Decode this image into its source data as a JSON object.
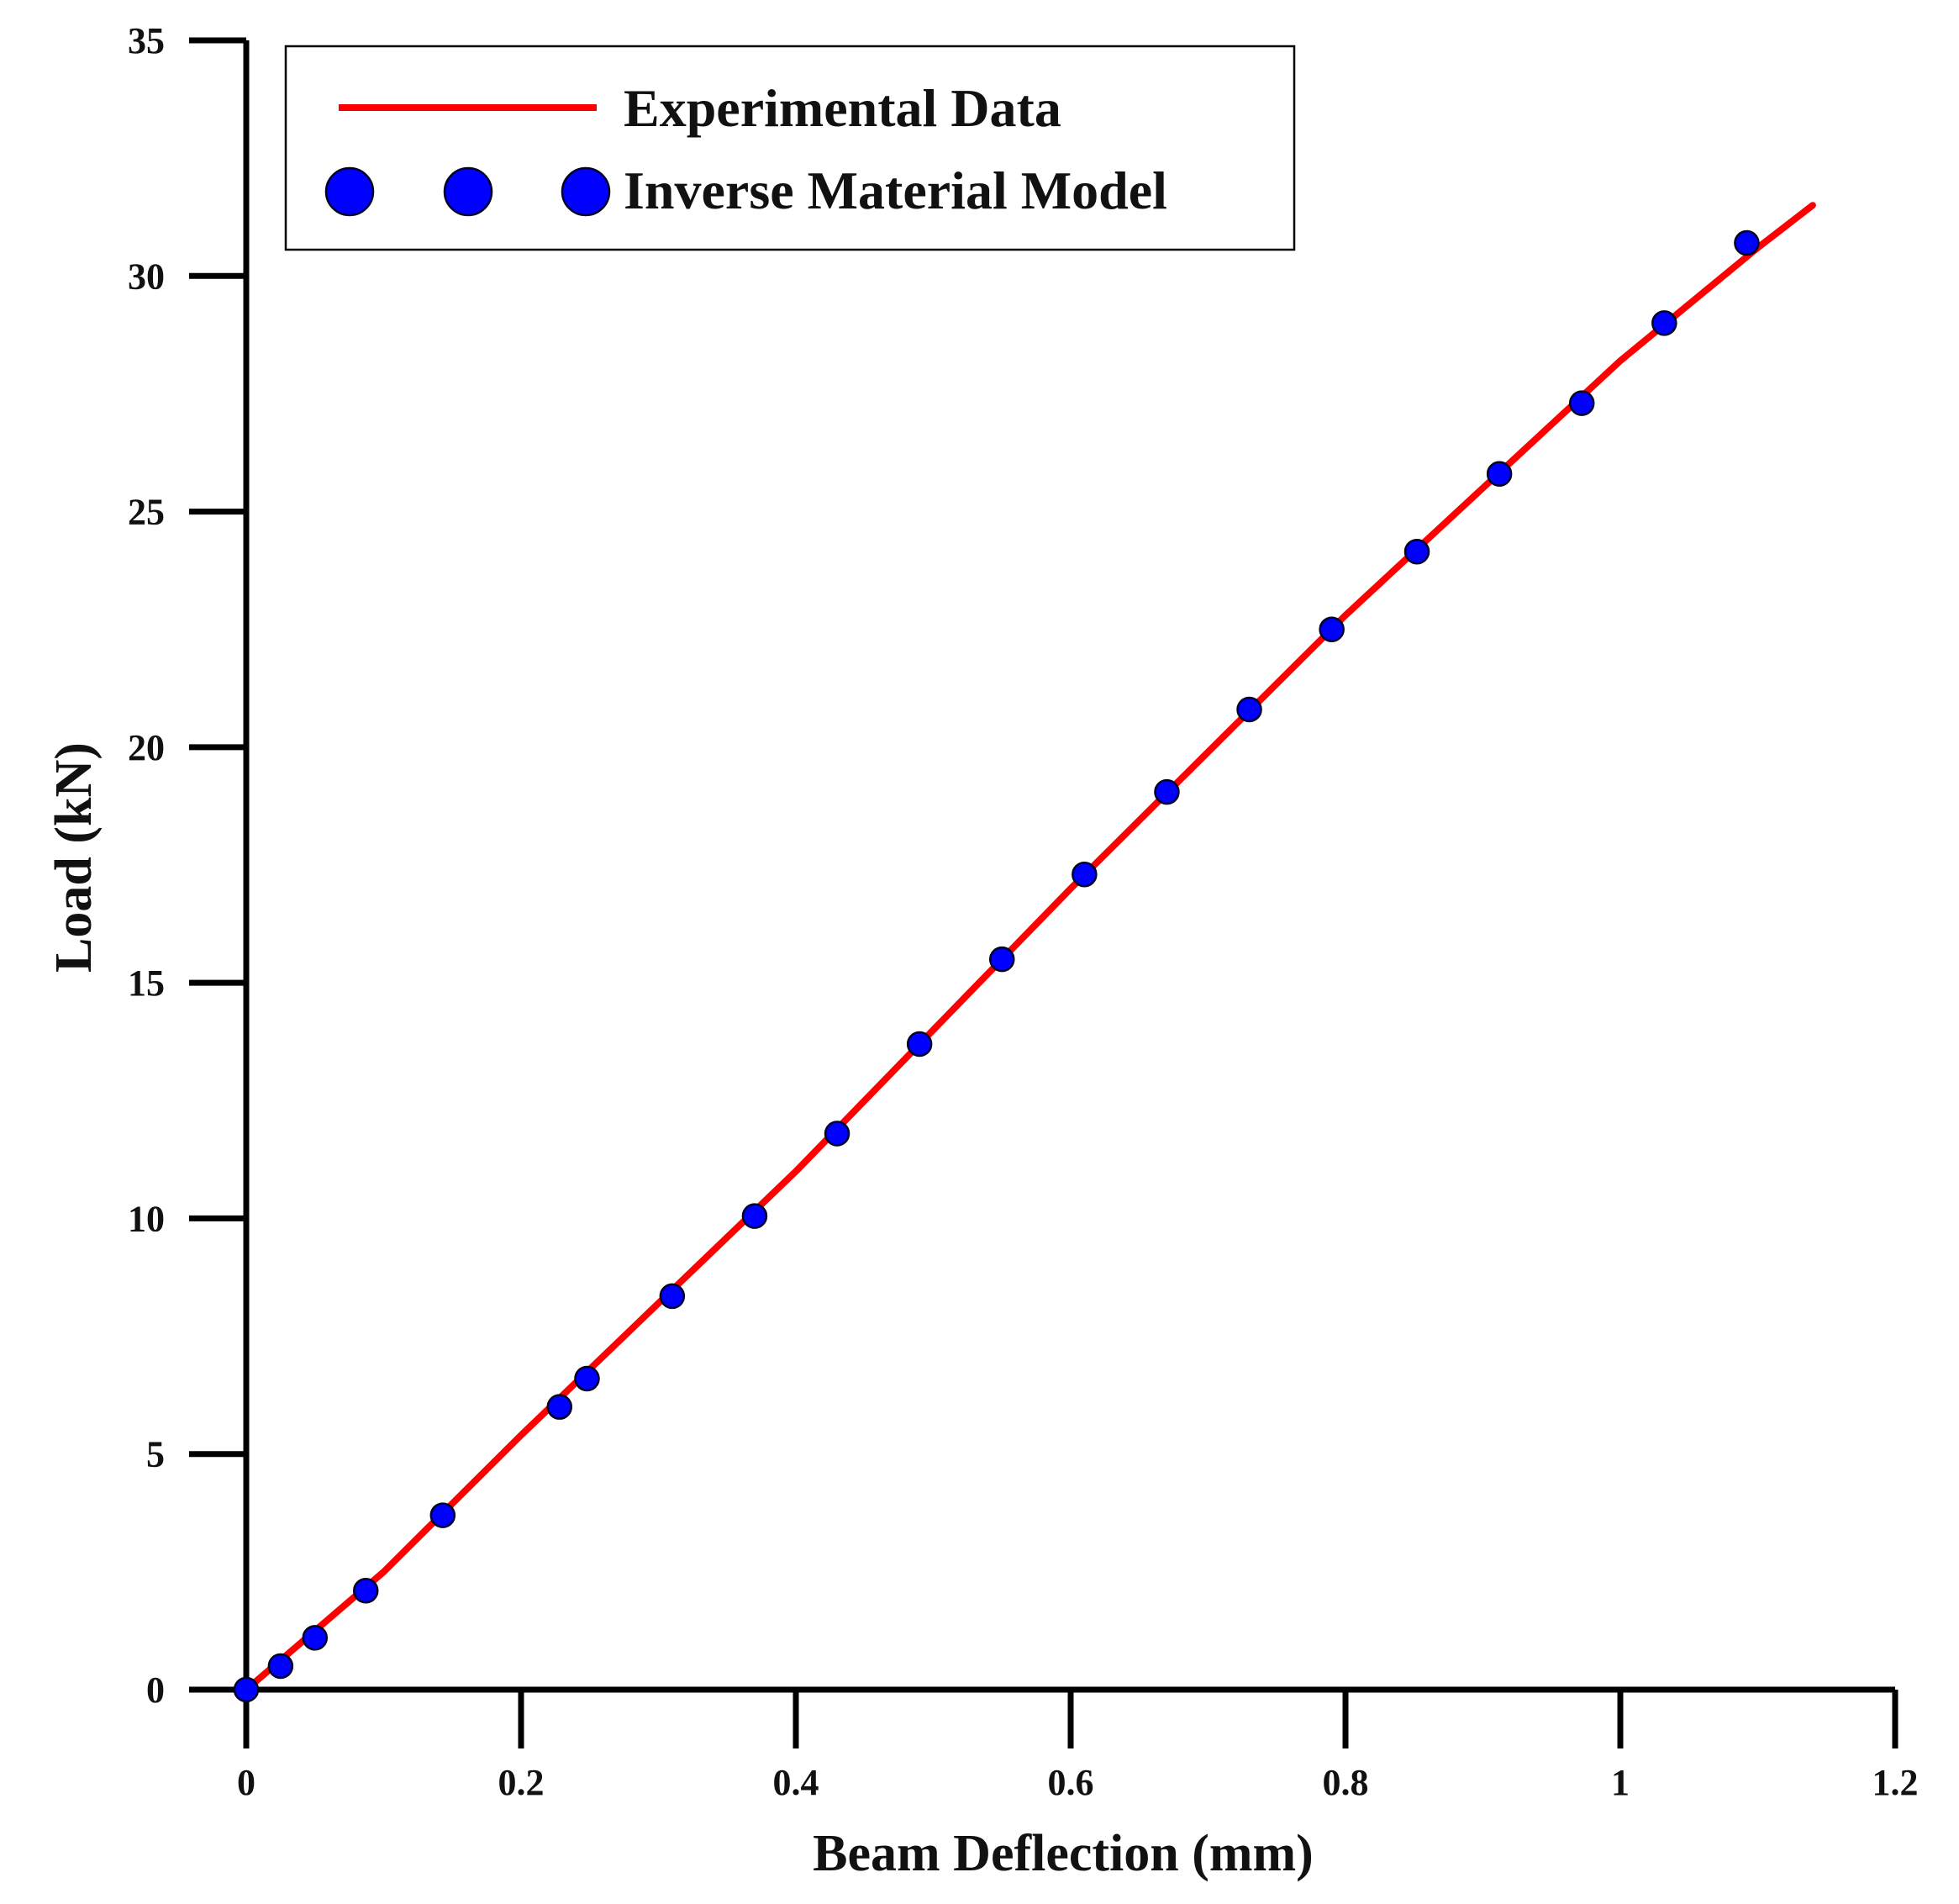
{
  "chart_data": {
    "type": "line",
    "title": "",
    "xlabel": "Beam Deflection (mm)",
    "ylabel": "Load (kN)",
    "xlim": [
      0,
      1.2
    ],
    "ylim": [
      0,
      35
    ],
    "x_ticks": [
      0,
      0.2,
      0.4,
      0.6,
      0.8,
      1,
      1.2
    ],
    "x_tick_labels": [
      "0",
      "0.2",
      "0.4",
      "0.6",
      "0.8",
      "1",
      "1.2"
    ],
    "y_ticks": [
      0,
      5,
      10,
      15,
      20,
      25,
      30,
      35
    ],
    "y_tick_labels": [
      "0",
      "5",
      "10",
      "15",
      "20",
      "25",
      "30",
      "35"
    ],
    "grid": false,
    "legend_position": "top-left",
    "colors": {
      "line": "#ff0000",
      "marker": "#0000ff",
      "marker_edge": "#000022",
      "axis": "#000000"
    },
    "series": [
      {
        "name": "Experimental Data",
        "style": "line",
        "x": [
          0,
          0.1,
          0.2,
          0.3,
          0.4,
          0.5,
          0.6,
          0.7,
          0.8,
          0.9,
          1.0,
          1.1,
          1.14
        ],
        "y": [
          0,
          2.5,
          5.4,
          8.2,
          11.0,
          14.0,
          17.0,
          19.9,
          22.8,
          25.5,
          28.2,
          30.6,
          31.5
        ]
      },
      {
        "name": "Inverse Material Model",
        "style": "scatter",
        "x": [
          0,
          0.025,
          0.05,
          0.087,
          0.143,
          0.228,
          0.248,
          0.31,
          0.37,
          0.43,
          0.49,
          0.55,
          0.61,
          0.67,
          0.73,
          0.79,
          0.852,
          0.912,
          0.972,
          1.032,
          1.092
        ],
        "y": [
          0,
          0.5,
          1.1,
          2.1,
          3.7,
          6.0,
          6.6,
          8.35,
          10.05,
          11.8,
          13.7,
          15.5,
          17.3,
          19.05,
          20.8,
          22.5,
          24.15,
          25.8,
          27.3,
          29.0,
          30.7
        ]
      }
    ]
  }
}
